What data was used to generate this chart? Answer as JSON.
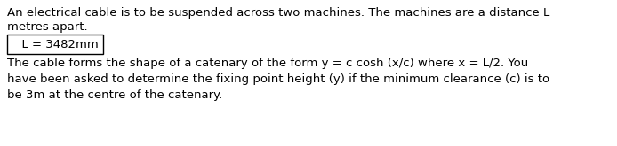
{
  "line1": "An electrical cable is to be suspended across two machines. The machines are a distance L",
  "line2": "metres apart.",
  "boxed_text": "  L = 3482mm",
  "line3": "The cable forms the shape of a catenary of the form y = c cosh (x/c) where x = L/2. You",
  "line4": "have been asked to determine the fixing point height (y) if the minimum clearance (c) is to",
  "line5": "be 3m at the centre of the catenary.",
  "font_size": 9.5,
  "font_family": "DejaVu Sans",
  "bg_color": "#ffffff",
  "text_color": "#000000",
  "box_color": "#000000",
  "fig_width": 6.94,
  "fig_height": 1.65,
  "dpi": 100
}
